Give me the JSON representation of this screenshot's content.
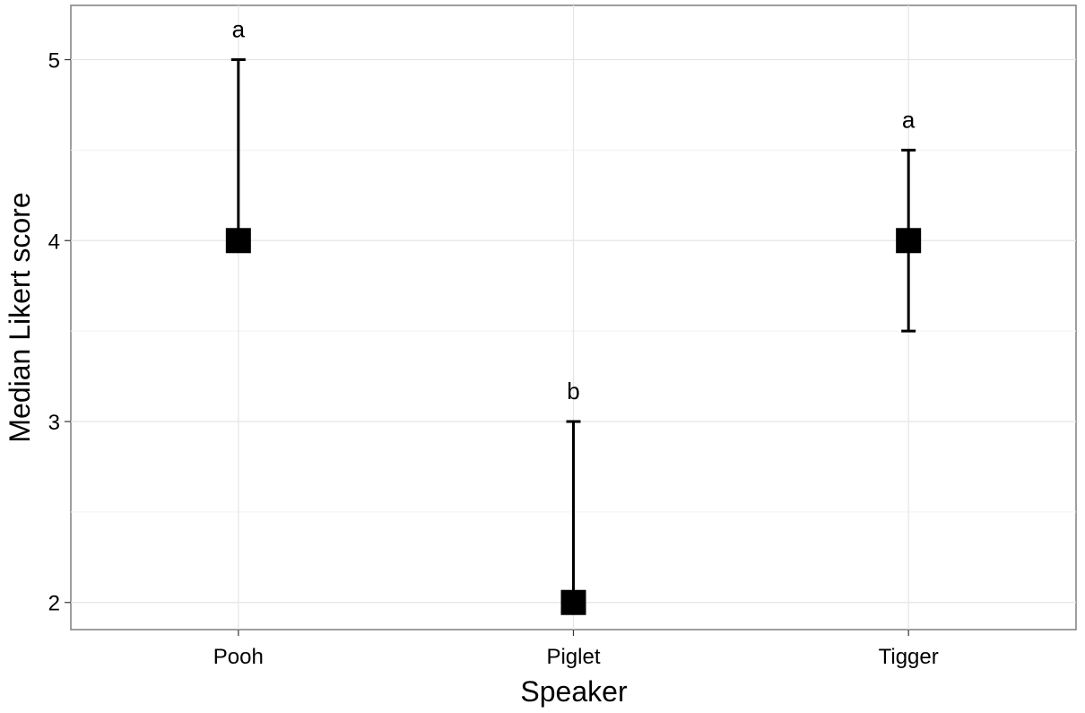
{
  "chart_data": {
    "type": "scatter",
    "title": "",
    "xlabel": "Speaker",
    "ylabel": "Median Likert score",
    "categories": [
      "Pooh",
      "Piglet",
      "Tigger"
    ],
    "medians": [
      4,
      2,
      4
    ],
    "lower": [
      4,
      2,
      3.5
    ],
    "upper": [
      5,
      3,
      4.5
    ],
    "group_letters": [
      "a",
      "b",
      "a"
    ],
    "ylim": [
      1.85,
      5.3
    ],
    "yticks": [
      2,
      3,
      4,
      5
    ],
    "grid": true,
    "legend": "none"
  }
}
